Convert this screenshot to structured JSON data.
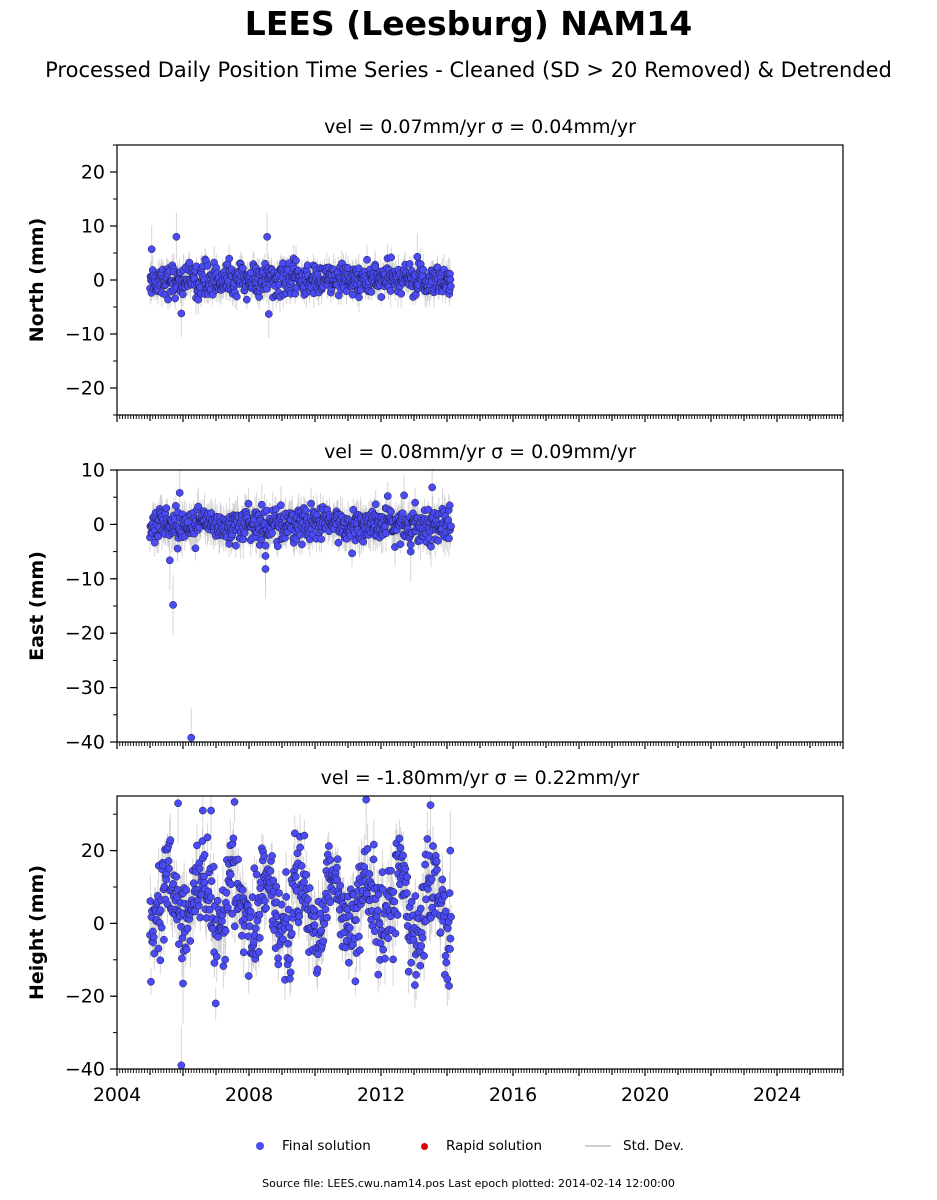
{
  "title": "LEES (Leesburg) NAM14",
  "subtitle": "Processed Daily Position Time Series - Cleaned (SD > 20 Removed) & Detrended",
  "legend": {
    "final": "Final solution",
    "rapid": "Rapid solution",
    "stddev": "Std. Dev."
  },
  "footer": "Source file: LEES.cwu.nam14.pos  Last epoch plotted: 2014-02-14 12:00:00",
  "colors": {
    "final": "#4b4bf5",
    "rapid": "#e00000",
    "stddev": "#c8c8c8"
  },
  "chart_data": [
    {
      "type": "scatter",
      "title": "vel = 0.07mm/yr   σ = 0.04mm/yr",
      "ylabel": "North (mm)",
      "xlim": [
        2004.0,
        2026.0
      ],
      "ylim": [
        -25,
        25
      ],
      "yticks": [
        20,
        10,
        0,
        -10,
        -20
      ],
      "xticks": [],
      "data_span": [
        2005.0,
        2014.12
      ],
      "scatter_sd": 1.5,
      "errorbar_half": 2.0,
      "notable_points": [
        {
          "x": 2005.05,
          "y": 5.7
        },
        {
          "x": 2005.8,
          "y": 8.0
        },
        {
          "x": 2008.55,
          "y": 8.0
        },
        {
          "x": 2005.95,
          "y": -6.2
        },
        {
          "x": 2008.6,
          "y": -6.3
        },
        {
          "x": 2013.1,
          "y": 4.3
        }
      ]
    },
    {
      "type": "scatter",
      "title": "vel = 0.08mm/yr   σ = 0.09mm/yr",
      "ylabel": "East (mm)",
      "xlim": [
        2004.0,
        2026.0
      ],
      "ylim": [
        -40,
        10
      ],
      "yticks": [
        10,
        0,
        -10,
        -20,
        -30,
        -40
      ],
      "xticks": [],
      "data_span": [
        2005.0,
        2014.12
      ],
      "scatter_sd": 1.6,
      "errorbar_half": 2.5,
      "notable_points": [
        {
          "x": 2005.7,
          "y": -14.8
        },
        {
          "x": 2006.25,
          "y": -39.2
        },
        {
          "x": 2005.6,
          "y": -6.6
        },
        {
          "x": 2008.5,
          "y": -8.2
        },
        {
          "x": 2008.5,
          "y": -5.8
        },
        {
          "x": 2013.55,
          "y": 6.8
        },
        {
          "x": 2005.9,
          "y": 5.8
        },
        {
          "x": 2012.9,
          "y": -5.0
        }
      ]
    },
    {
      "type": "scatter",
      "title": "vel = -1.80mm/yr   σ = 0.22mm/yr",
      "ylabel": "Height (mm)",
      "xlim": [
        2004.0,
        2026.0
      ],
      "ylim": [
        -40,
        35
      ],
      "yticks": [
        20,
        0,
        -20,
        -40
      ],
      "xticks": [
        2004,
        2008,
        2012,
        2016,
        2020,
        2024
      ],
      "data_span": [
        2005.0,
        2014.12
      ],
      "scatter_sd": 6.5,
      "seasonal_amp": 8.0,
      "errorbar_half": 5.0,
      "notable_points": [
        {
          "x": 2005.95,
          "y": -39.0
        },
        {
          "x": 2006.0,
          "y": -16.5
        },
        {
          "x": 2005.85,
          "y": 33.0
        },
        {
          "x": 2006.6,
          "y": 31.0
        },
        {
          "x": 2006.85,
          "y": 31.0
        },
        {
          "x": 2011.55,
          "y": 34.0
        },
        {
          "x": 2013.5,
          "y": 32.5
        },
        {
          "x": 2014.1,
          "y": 20.0
        }
      ]
    }
  ]
}
